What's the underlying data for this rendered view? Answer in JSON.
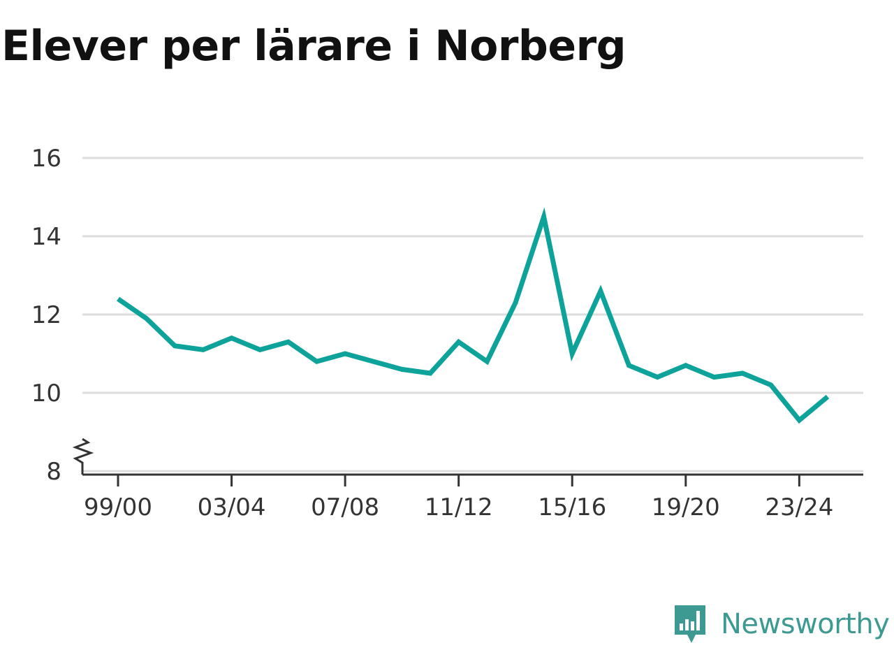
{
  "title": "Elever per lärare i Norberg",
  "brand": {
    "name": "Newsworthy",
    "icon": "newsworthy-logo-icon"
  },
  "colors": {
    "line": "#0da39a",
    "grid": "#dddddd",
    "axis": "#333333",
    "text": "#111111",
    "brand": "#3d9a92"
  },
  "chart_data": {
    "type": "line",
    "title": "Elever per lärare i Norberg",
    "xlabel": "",
    "ylabel": "",
    "x": [
      "99/00",
      "00/01",
      "01/02",
      "02/03",
      "03/04",
      "04/05",
      "05/06",
      "06/07",
      "07/08",
      "08/09",
      "09/10",
      "10/11",
      "11/12",
      "12/13",
      "13/14",
      "14/15",
      "15/16",
      "16/17",
      "17/18",
      "18/19",
      "19/20",
      "20/21",
      "21/22",
      "22/23",
      "23/24",
      "24/25"
    ],
    "x_tick_labels": [
      "99/00",
      "03/04",
      "07/08",
      "11/12",
      "15/16",
      "19/20",
      "23/24"
    ],
    "ylim": [
      8,
      16
    ],
    "y_ticks": [
      8,
      10,
      12,
      14,
      16
    ],
    "y_axis_break": true,
    "grid": "horizontal",
    "series": [
      {
        "values": [
          12.4,
          11.9,
          11.2,
          11.1,
          11.4,
          11.1,
          11.3,
          10.8,
          11.0,
          10.8,
          10.6,
          10.5,
          11.3,
          10.8,
          12.3,
          14.5,
          11.0,
          12.6,
          10.7,
          10.4,
          10.7,
          10.4,
          10.5,
          10.2,
          9.3,
          9.9
        ]
      }
    ]
  }
}
